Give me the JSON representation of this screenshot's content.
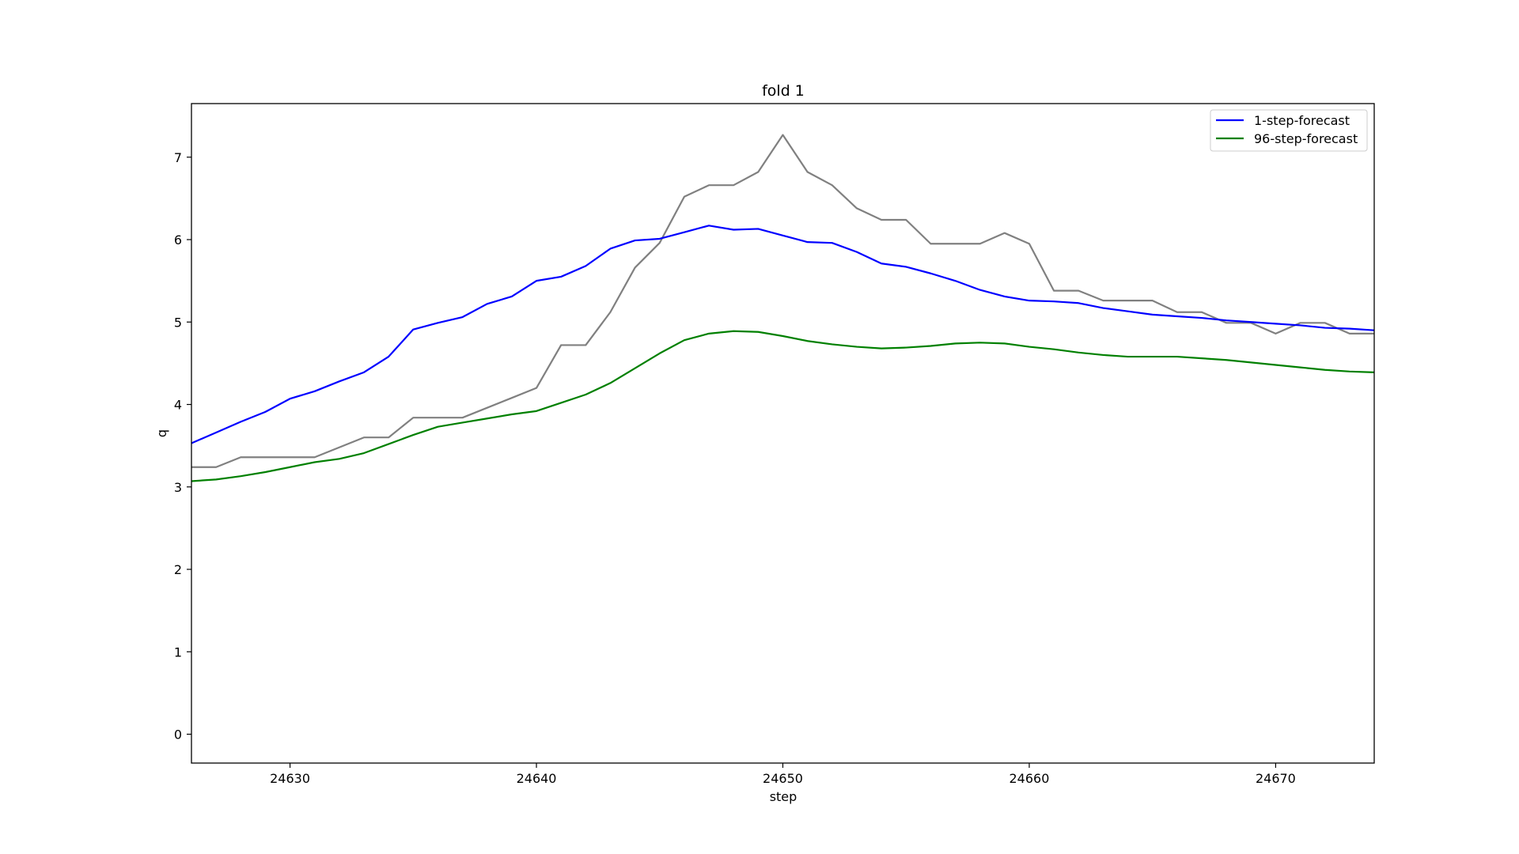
{
  "chart_data": {
    "type": "line",
    "title": "fold 1",
    "xlabel": "step",
    "ylabel": "q",
    "xlim": [
      24626,
      24674
    ],
    "ylim": [
      -0.35,
      7.65
    ],
    "xticks": [
      24630,
      24640,
      24650,
      24660,
      24670
    ],
    "yticks": [
      0,
      1,
      2,
      3,
      4,
      5,
      6,
      7
    ],
    "grid": false,
    "legend_position": "top-right",
    "x": [
      24626,
      24627,
      24628,
      24629,
      24630,
      24631,
      24632,
      24633,
      24634,
      24635,
      24636,
      24637,
      24638,
      24639,
      24640,
      24641,
      24642,
      24643,
      24644,
      24645,
      24646,
      24647,
      24648,
      24649,
      24650,
      24651,
      24652,
      24653,
      24654,
      24655,
      24656,
      24657,
      24658,
      24659,
      24660,
      24661,
      24662,
      24663,
      24664,
      24665,
      24666,
      24667,
      24668,
      24669,
      24670,
      24671,
      24672,
      24673,
      24674
    ],
    "series": [
      {
        "name": "1-step-forecast",
        "color": "#0000ff",
        "in_legend": true,
        "values": [
          3.53,
          3.66,
          3.79,
          3.91,
          4.07,
          4.16,
          4.28,
          4.39,
          4.58,
          4.91,
          4.99,
          5.06,
          5.22,
          5.31,
          5.5,
          5.55,
          5.68,
          5.89,
          5.99,
          6.01,
          6.09,
          6.17,
          6.12,
          6.13,
          6.05,
          5.97,
          5.96,
          5.85,
          5.71,
          5.67,
          5.59,
          5.5,
          5.39,
          5.31,
          5.26,
          5.25,
          5.23,
          5.17,
          5.13,
          5.09,
          5.07,
          5.05,
          5.02,
          5.0,
          4.98,
          4.96,
          4.93,
          4.92,
          4.9
        ]
      },
      {
        "name": "96-step-forecast",
        "color": "#008000",
        "in_legend": true,
        "values": [
          3.07,
          3.09,
          3.13,
          3.18,
          3.24,
          3.3,
          3.34,
          3.41,
          3.52,
          3.63,
          3.73,
          3.78,
          3.83,
          3.88,
          3.92,
          4.02,
          4.12,
          4.26,
          4.44,
          4.62,
          4.78,
          4.86,
          4.89,
          4.88,
          4.83,
          4.77,
          4.73,
          4.7,
          4.68,
          4.69,
          4.71,
          4.74,
          4.75,
          4.74,
          4.7,
          4.67,
          4.63,
          4.6,
          4.58,
          4.58,
          4.58,
          4.56,
          4.54,
          4.51,
          4.48,
          4.45,
          4.42,
          4.4,
          4.39
        ]
      },
      {
        "name": "",
        "color": "#808080",
        "in_legend": false,
        "values": [
          3.24,
          3.24,
          3.36,
          3.36,
          3.36,
          3.36,
          3.48,
          3.6,
          3.6,
          3.84,
          3.84,
          3.84,
          3.96,
          4.08,
          4.2,
          4.72,
          4.72,
          5.12,
          5.66,
          5.96,
          6.52,
          6.66,
          6.66,
          6.82,
          7.27,
          6.82,
          6.66,
          6.38,
          6.24,
          6.24,
          5.95,
          5.95,
          5.95,
          6.08,
          5.95,
          5.38,
          5.38,
          5.26,
          5.26,
          5.26,
          5.12,
          5.12,
          4.99,
          4.99,
          4.86,
          4.99,
          4.99,
          4.86,
          4.86
        ]
      }
    ]
  }
}
